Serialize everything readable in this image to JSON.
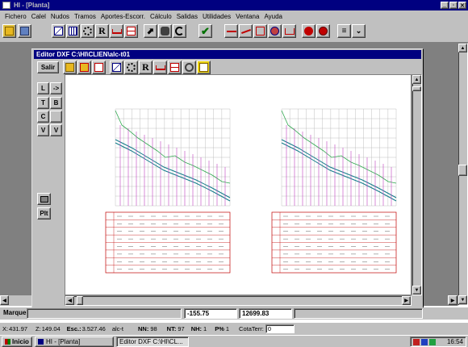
{
  "app": {
    "title": "HI - [Planta]"
  },
  "menu": [
    "Fichero",
    "Calel",
    "Nudos",
    "Tramos",
    "Aportes-Escorr.",
    "Cálculo",
    "Salidas",
    "Utilidades",
    "Ventana",
    "Ayuda"
  ],
  "editor": {
    "title": "Editor DXF C:\\HI\\CLIEN\\alc-t01",
    "exit_label": "Salir",
    "left_buttons": [
      [
        "L",
        "->"
      ],
      [
        "T",
        "B"
      ],
      [
        "C",
        ""
      ],
      [
        "V",
        "V"
      ]
    ],
    "plt_label": "Plt",
    "coord_x": "-155.75",
    "coord_y": "12699.83"
  },
  "status": {
    "marquee": "Marque",
    "x_label": "X:",
    "x_value": "431.97",
    "z_label": "Z:",
    "z_value": "149.04",
    "esc_label": "Esc.:",
    "esc_value": "3.527.46",
    "file": "alc-t",
    "nn_label": "NN:",
    "nn_value": "98",
    "nt_label": "NT:",
    "nt_value": "97",
    "nh_label": "NH:",
    "nh_value": "1",
    "p_label": "P%",
    "p_value": "1",
    "cota_label": "CotaTerr:",
    "cota_value": "0"
  },
  "taskbar": {
    "start": "Inicio",
    "task1": "HI - [Planta]",
    "task2": "Editor DXF C:\\HI\\CL...",
    "clock": "16:54"
  },
  "colors": {
    "titlebar": "#000080",
    "face": "#c0c0c0",
    "profile_green": "#2fa84f",
    "profile_teal": "#127a8a",
    "profile_magenta": "#c040c0",
    "table_red": "#c00000"
  }
}
